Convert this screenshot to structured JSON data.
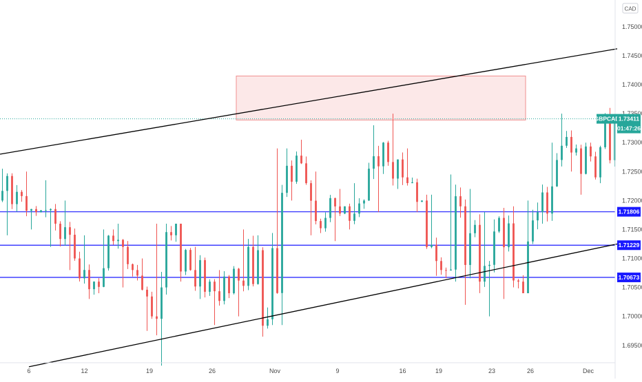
{
  "symbol": "GBPCAD",
  "currency": "CAD",
  "current_price_label": "1.73411",
  "countdown": "01:47:26",
  "colors": {
    "up": "#26a69a",
    "down": "#ef5350",
    "channel": "#000000",
    "support": "#1a1aff",
    "zone_fill": "#fce8e8",
    "zone_border": "#f08f8f",
    "price_tag": "#26a69a",
    "level_tag": "#1a1aff"
  },
  "chart_data": {
    "type": "candlestick",
    "symbol": "GBPCAD",
    "timeframe": "1h",
    "y_axis": {
      "min": 1.692,
      "max": 1.7545,
      "ticks": [
        "1.69500",
        "1.70000",
        "1.70500",
        "1.71000",
        "1.71500",
        "1.72000",
        "1.72500",
        "1.73000",
        "1.73500",
        "1.74000",
        "1.74500",
        "1.75000"
      ],
      "tick_values": [
        1.695,
        1.7,
        1.705,
        1.71,
        1.715,
        1.72,
        1.725,
        1.73,
        1.735,
        1.74,
        1.745,
        1.75
      ]
    },
    "x_axis": {
      "ticks": [
        "6",
        "12",
        "19",
        "26",
        "Nov",
        "9",
        "16",
        "19",
        "23",
        "26",
        "Dec"
      ],
      "tick_index": [
        6,
        17.5,
        31,
        44,
        57,
        70,
        83.5,
        91,
        102,
        110,
        122
      ]
    },
    "candles_ohlc_daily_approx": [
      {
        "label": "2",
        "o": 1.72,
        "h": 1.7255,
        "l": 1.714,
        "c": 1.7215
      },
      {
        "label": "5",
        "o": 1.7215,
        "h": 1.725,
        "l": 1.715,
        "c": 1.718
      },
      {
        "label": "6",
        "o": 1.718,
        "h": 1.7235,
        "l": 1.712,
        "c": 1.716
      },
      {
        "label": "7",
        "o": 1.716,
        "h": 1.72,
        "l": 1.708,
        "c": 1.71
      },
      {
        "label": "8",
        "o": 1.71,
        "h": 1.714,
        "l": 1.703,
        "c": 1.706
      },
      {
        "label": "9",
        "o": 1.706,
        "h": 1.715,
        "l": 1.704,
        "c": 1.713
      },
      {
        "label": "12",
        "o": 1.713,
        "h": 1.716,
        "l": 1.705,
        "c": 1.708
      },
      {
        "label": "13",
        "o": 1.708,
        "h": 1.71,
        "l": 1.6975,
        "c": 1.7
      },
      {
        "label": "14",
        "o": 1.7,
        "h": 1.716,
        "l": 1.6915,
        "c": 1.714
      },
      {
        "label": "15",
        "o": 1.714,
        "h": 1.716,
        "l": 1.706,
        "c": 1.708
      },
      {
        "label": "16",
        "o": 1.708,
        "h": 1.712,
        "l": 1.703,
        "c": 1.706
      },
      {
        "label": "19",
        "o": 1.706,
        "h": 1.708,
        "l": 1.6985,
        "c": 1.704
      },
      {
        "label": "20",
        "o": 1.704,
        "h": 1.715,
        "l": 1.7,
        "c": 1.712
      },
      {
        "label": "21",
        "o": 1.712,
        "h": 1.714,
        "l": 1.6965,
        "c": 1.6995
      },
      {
        "label": "22",
        "o": 1.6995,
        "h": 1.729,
        "l": 1.6985,
        "c": 1.726
      },
      {
        "label": "23",
        "o": 1.726,
        "h": 1.7305,
        "l": 1.72,
        "c": 1.723
      },
      {
        "label": "26",
        "o": 1.723,
        "h": 1.725,
        "l": 1.714,
        "c": 1.717
      },
      {
        "label": "27",
        "o": 1.717,
        "h": 1.722,
        "l": 1.713,
        "c": 1.719
      },
      {
        "label": "28",
        "o": 1.719,
        "h": 1.723,
        "l": 1.715,
        "c": 1.72
      },
      {
        "label": "29",
        "o": 1.72,
        "h": 1.733,
        "l": 1.718,
        "c": 1.73
      },
      {
        "label": "30",
        "o": 1.73,
        "h": 1.735,
        "l": 1.722,
        "c": 1.724
      },
      {
        "label": "Nov 2",
        "o": 1.724,
        "h": 1.729,
        "l": 1.718,
        "c": 1.72
      },
      {
        "label": "3",
        "o": 1.72,
        "h": 1.721,
        "l": 1.707,
        "c": 1.708
      },
      {
        "label": "4",
        "o": 1.708,
        "h": 1.7245,
        "l": 1.706,
        "c": 1.719
      },
      {
        "label": "5",
        "o": 1.719,
        "h": 1.722,
        "l": 1.702,
        "c": 1.706
      },
      {
        "label": "6",
        "o": 1.706,
        "h": 1.718,
        "l": 1.7,
        "c": 1.717
      },
      {
        "label": "9",
        "o": 1.717,
        "h": 1.719,
        "l": 1.703,
        "c": 1.706
      },
      {
        "label": "10",
        "o": 1.706,
        "h": 1.72,
        "l": 1.704,
        "c": 1.718
      },
      {
        "label": "11",
        "o": 1.718,
        "h": 1.73,
        "l": 1.716,
        "c": 1.727
      },
      {
        "label": "12",
        "o": 1.727,
        "h": 1.735,
        "l": 1.725,
        "c": 1.729
      },
      {
        "label": "13",
        "o": 1.729,
        "h": 1.73,
        "l": 1.721,
        "c": 1.724
      },
      {
        "label": "16",
        "o": 1.724,
        "h": 1.736,
        "l": 1.723,
        "c": 1.7341
      }
    ],
    "channel_upper": {
      "from": {
        "x_index": 0,
        "y": 1.728
      },
      "to": {
        "x_index": 128,
        "y": 1.7462
      }
    },
    "channel_lower": {
      "from": {
        "x_index": 6,
        "y": 1.6913
      },
      "to": {
        "x_index": 128,
        "y": 1.7125
      }
    },
    "resistance_zone": {
      "x_start_index": 49,
      "x_end_index": 109,
      "y_low": 1.7339,
      "y_high": 1.7415
    },
    "horizontal_levels": [
      {
        "value": 1.71806,
        "label": "1.71806"
      },
      {
        "value": 1.71229,
        "label": "1.71229"
      },
      {
        "value": 1.70673,
        "label": "1.70673"
      }
    ],
    "current_price": 1.73411
  }
}
